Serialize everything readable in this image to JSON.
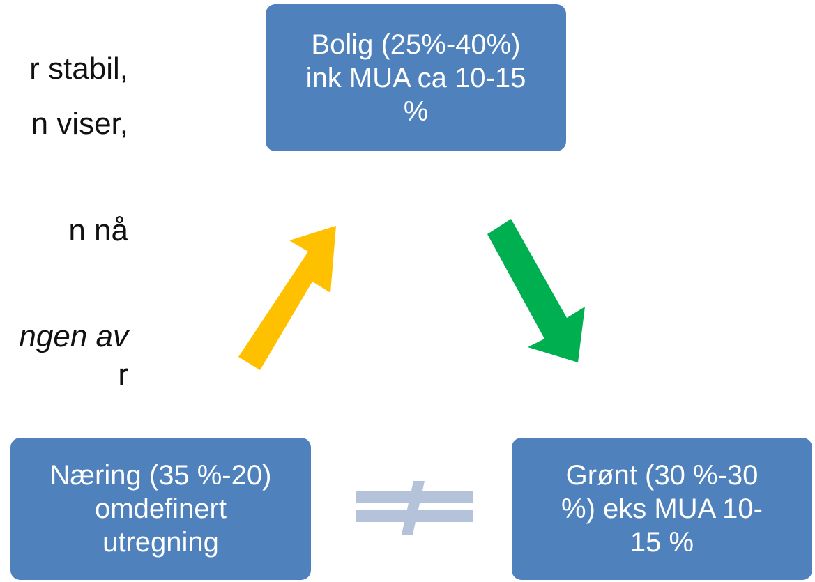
{
  "left_text": {
    "lines": [
      {
        "text": "r stabil,",
        "italic": false
      },
      {
        "text": "n viser,",
        "italic": false
      },
      {
        "text": "n nå",
        "italic": false
      },
      {
        "text": "ngen av",
        "italic": true
      },
      {
        "text": "r",
        "italic": false
      }
    ]
  },
  "boxes": {
    "bolig": {
      "lines": [
        "Bolig (25%-40%)",
        "ink MUA ca 10-15",
        "%"
      ]
    },
    "naering": {
      "lines": [
        "Næring (35 %-20)",
        "omdefinert",
        "utregning"
      ]
    },
    "gront": {
      "lines": [
        "Grønt (30 %-30",
        "%) eks MUA 10-",
        "15 %"
      ]
    }
  },
  "colors": {
    "box_fill": "#4f81bd",
    "box_border": "#3f6ea8",
    "box_text": "#ffffff",
    "arrow_yellow": "#ffc000",
    "arrow_green": "#00b050",
    "not_equal": "#b4c2da"
  },
  "icons": {
    "arrow_up": "arrow-up-right-icon",
    "arrow_down": "arrow-down-right-icon",
    "not_equal": "not-equal-icon"
  }
}
